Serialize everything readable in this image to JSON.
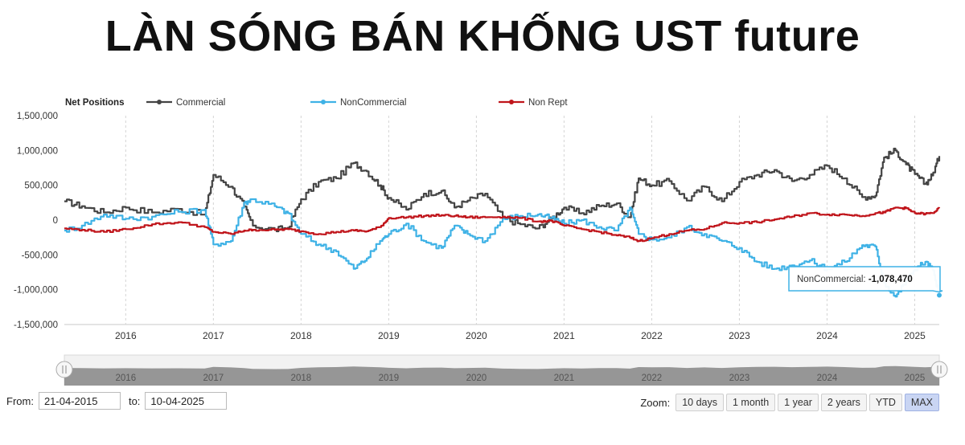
{
  "headline": "LÀN SÓNG BÁN KHỐNG UST future",
  "chart_data": {
    "type": "line",
    "title": "Net Positions",
    "x_start": 2015.3,
    "x_end": 2025.28,
    "x_ticks": [
      2016,
      2017,
      2018,
      2019,
      2020,
      2021,
      2022,
      2023,
      2024,
      2025
    ],
    "x_tick_labels": [
      "2016",
      "2017",
      "2018",
      "2019",
      "2020",
      "2021",
      "2022",
      "2023",
      "2024",
      "2025"
    ],
    "ylim": [
      -1500000,
      1500000
    ],
    "y_ticks": [
      -1500000,
      -1000000,
      -500000,
      0,
      500000,
      1000000,
      1500000
    ],
    "y_tick_labels": [
      "-1,500,000",
      "-1,000,000",
      "-500,000",
      "0",
      "500,000",
      "1,000,000",
      "1,500,000"
    ],
    "legend_position": "top-left",
    "grid_vertical": true,
    "series": [
      {
        "name": "Commercial",
        "color": "#444444",
        "points": [
          [
            2015.3,
            270000
          ],
          [
            2015.5,
            200000
          ],
          [
            2015.75,
            110000
          ],
          [
            2016.0,
            180000
          ],
          [
            2016.3,
            110000
          ],
          [
            2016.6,
            160000
          ],
          [
            2016.9,
            80000
          ],
          [
            2017.0,
            650000
          ],
          [
            2017.2,
            480000
          ],
          [
            2017.35,
            200000
          ],
          [
            2017.45,
            -80000
          ],
          [
            2017.7,
            -140000
          ],
          [
            2017.85,
            -110000
          ],
          [
            2018.0,
            300000
          ],
          [
            2018.2,
            550000
          ],
          [
            2018.4,
            600000
          ],
          [
            2018.6,
            820000
          ],
          [
            2018.75,
            700000
          ],
          [
            2018.9,
            500000
          ],
          [
            2019.0,
            320000
          ],
          [
            2019.2,
            150000
          ],
          [
            2019.4,
            380000
          ],
          [
            2019.6,
            420000
          ],
          [
            2019.75,
            180000
          ],
          [
            2019.9,
            280000
          ],
          [
            2020.1,
            380000
          ],
          [
            2020.3,
            30000
          ],
          [
            2020.5,
            -60000
          ],
          [
            2020.7,
            -120000
          ],
          [
            2020.85,
            20000
          ],
          [
            2021.0,
            180000
          ],
          [
            2021.2,
            100000
          ],
          [
            2021.4,
            200000
          ],
          [
            2021.6,
            240000
          ],
          [
            2021.75,
            40000
          ],
          [
            2021.85,
            600000
          ],
          [
            2022.0,
            500000
          ],
          [
            2022.2,
            560000
          ],
          [
            2022.4,
            280000
          ],
          [
            2022.6,
            480000
          ],
          [
            2022.8,
            270000
          ],
          [
            2023.0,
            550000
          ],
          [
            2023.2,
            650000
          ],
          [
            2023.4,
            720000
          ],
          [
            2023.6,
            560000
          ],
          [
            2023.8,
            650000
          ],
          [
            2024.0,
            780000
          ],
          [
            2024.2,
            600000
          ],
          [
            2024.4,
            330000
          ],
          [
            2024.55,
            350000
          ],
          [
            2024.65,
            900000
          ],
          [
            2024.78,
            1000000
          ],
          [
            2024.9,
            800000
          ],
          [
            2025.0,
            660000
          ],
          [
            2025.12,
            520000
          ],
          [
            2025.2,
            640000
          ],
          [
            2025.28,
            920000
          ]
        ]
      },
      {
        "name": "NonCommercial",
        "color": "#3fb2e6",
        "points": [
          [
            2015.3,
            -150000
          ],
          [
            2015.5,
            -80000
          ],
          [
            2015.75,
            80000
          ],
          [
            2016.0,
            20000
          ],
          [
            2016.3,
            50000
          ],
          [
            2016.6,
            120000
          ],
          [
            2016.9,
            150000
          ],
          [
            2017.0,
            -350000
          ],
          [
            2017.2,
            -300000
          ],
          [
            2017.35,
            250000
          ],
          [
            2017.45,
            300000
          ],
          [
            2017.7,
            200000
          ],
          [
            2017.85,
            100000
          ],
          [
            2018.0,
            -200000
          ],
          [
            2018.2,
            -350000
          ],
          [
            2018.4,
            -450000
          ],
          [
            2018.6,
            -700000
          ],
          [
            2018.75,
            -550000
          ],
          [
            2018.9,
            -300000
          ],
          [
            2019.0,
            -200000
          ],
          [
            2019.2,
            -50000
          ],
          [
            2019.4,
            -300000
          ],
          [
            2019.6,
            -400000
          ],
          [
            2019.75,
            -80000
          ],
          [
            2019.9,
            -200000
          ],
          [
            2020.1,
            -300000
          ],
          [
            2020.3,
            20000
          ],
          [
            2020.5,
            60000
          ],
          [
            2020.7,
            80000
          ],
          [
            2020.85,
            30000
          ],
          [
            2021.0,
            -50000
          ],
          [
            2021.2,
            0
          ],
          [
            2021.4,
            -100000
          ],
          [
            2021.6,
            -150000
          ],
          [
            2021.75,
            180000
          ],
          [
            2021.85,
            -200000
          ],
          [
            2022.0,
            -280000
          ],
          [
            2022.2,
            -250000
          ],
          [
            2022.4,
            -100000
          ],
          [
            2022.6,
            -200000
          ],
          [
            2022.8,
            -300000
          ],
          [
            2023.0,
            -400000
          ],
          [
            2023.2,
            -600000
          ],
          [
            2023.4,
            -700000
          ],
          [
            2023.6,
            -650000
          ],
          [
            2023.8,
            -580000
          ],
          [
            2024.0,
            -700000
          ],
          [
            2024.2,
            -600000
          ],
          [
            2024.4,
            -360000
          ],
          [
            2024.55,
            -380000
          ],
          [
            2024.65,
            -900000
          ],
          [
            2024.78,
            -1100000
          ],
          [
            2024.9,
            -880000
          ],
          [
            2025.0,
            -700000
          ],
          [
            2025.12,
            -600000
          ],
          [
            2025.2,
            -700000
          ],
          [
            2025.28,
            -1078470
          ]
        ]
      },
      {
        "name": "Non Rept",
        "color": "#c0151b",
        "points": [
          [
            2015.3,
            -120000
          ],
          [
            2015.5,
            -140000
          ],
          [
            2015.75,
            -170000
          ],
          [
            2016.0,
            -130000
          ],
          [
            2016.3,
            -60000
          ],
          [
            2016.6,
            -30000
          ],
          [
            2016.9,
            -100000
          ],
          [
            2017.0,
            -170000
          ],
          [
            2017.2,
            -200000
          ],
          [
            2017.35,
            -150000
          ],
          [
            2017.45,
            -140000
          ],
          [
            2017.7,
            -140000
          ],
          [
            2017.85,
            -130000
          ],
          [
            2018.0,
            -160000
          ],
          [
            2018.2,
            -200000
          ],
          [
            2018.4,
            -170000
          ],
          [
            2018.6,
            -150000
          ],
          [
            2018.75,
            -160000
          ],
          [
            2018.9,
            -100000
          ],
          [
            2019.0,
            30000
          ],
          [
            2019.2,
            40000
          ],
          [
            2019.4,
            60000
          ],
          [
            2019.6,
            70000
          ],
          [
            2019.75,
            60000
          ],
          [
            2019.9,
            40000
          ],
          [
            2020.1,
            40000
          ],
          [
            2020.3,
            50000
          ],
          [
            2020.5,
            30000
          ],
          [
            2020.7,
            -20000
          ],
          [
            2020.85,
            -10000
          ],
          [
            2021.0,
            -80000
          ],
          [
            2021.2,
            -130000
          ],
          [
            2021.4,
            -170000
          ],
          [
            2021.6,
            -220000
          ],
          [
            2021.75,
            -250000
          ],
          [
            2021.85,
            -300000
          ],
          [
            2022.0,
            -260000
          ],
          [
            2022.2,
            -200000
          ],
          [
            2022.4,
            -150000
          ],
          [
            2022.6,
            -130000
          ],
          [
            2022.8,
            -40000
          ],
          [
            2023.0,
            -40000
          ],
          [
            2023.2,
            -30000
          ],
          [
            2023.4,
            10000
          ],
          [
            2023.6,
            50000
          ],
          [
            2023.8,
            100000
          ],
          [
            2024.0,
            80000
          ],
          [
            2024.2,
            80000
          ],
          [
            2024.4,
            60000
          ],
          [
            2024.55,
            100000
          ],
          [
            2024.65,
            110000
          ],
          [
            2024.78,
            180000
          ],
          [
            2024.9,
            170000
          ],
          [
            2025.0,
            100000
          ],
          [
            2025.12,
            90000
          ],
          [
            2025.2,
            100000
          ],
          [
            2025.28,
            170000
          ]
        ]
      }
    ],
    "tooltip": {
      "series": "NonCommercial",
      "label": "NonCommercial:",
      "value": "-1,078,470",
      "x": 2025.28,
      "y": -1078470
    }
  },
  "navigator": {
    "tick_labels": [
      "2016",
      "2017",
      "2018",
      "2019",
      "2020",
      "2021",
      "2022",
      "2023",
      "2024",
      "2025"
    ],
    "fill_color": "#8c8c8c",
    "handle_left_icon": "handle-left-icon",
    "handle_right_icon": "handle-right-icon"
  },
  "range_selector": {
    "from_label": "From:",
    "from_value": "21-04-2015",
    "to_label": "to:",
    "to_value": "10-04-2025"
  },
  "zoom": {
    "label": "Zoom:",
    "buttons": [
      "10 days",
      "1 month",
      "1 year",
      "2 years",
      "YTD",
      "MAX"
    ],
    "active": "MAX",
    "active_color": "#c9d5f3"
  }
}
